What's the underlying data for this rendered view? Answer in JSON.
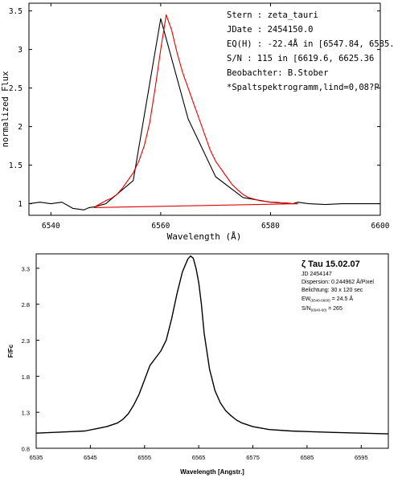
{
  "chart_data": [
    {
      "type": "line",
      "xlabel": "Wavelength (Å)",
      "ylabel": "normalized Flux",
      "xlim": [
        6536,
        6600
      ],
      "ylim": [
        0.85,
        3.6
      ],
      "x_ticks": [
        6540,
        6560,
        6580,
        6600
      ],
      "y_ticks": [
        1,
        1.5,
        2,
        2.5,
        3,
        3.5
      ],
      "x_tick_labels": [
        "6540",
        "6560",
        "6580",
        "6600"
      ],
      "y_tick_labels": [
        "1",
        "1.5",
        "2",
        "2.5",
        "3",
        "3.5"
      ],
      "annotations": [
        "Stern    : zeta_tauri",
        "JDate    : 2454150.0",
        "EQ(H) : -22.4Å in [6547.84, 6585.",
        "S/N      : 115 in [6619.6, 6625.36",
        "Beobachter: B.Stober",
        "*Spaltspektrogramm,lind=0,08?P"
      ],
      "series": [
        {
          "color": "#000000",
          "x": [
            6536,
            6538,
            6540,
            6542,
            6543,
            6544,
            6545,
            6546,
            6547,
            6548,
            6550,
            6555,
            6560,
            6565,
            6570,
            6575,
            6580,
            6584,
            6585,
            6587,
            6590,
            6593,
            6596,
            6598,
            6600
          ],
          "y": [
            1.0,
            1.02,
            1.0,
            1.02,
            0.98,
            0.94,
            0.93,
            0.92,
            0.95,
            0.96,
            1.0,
            1.3,
            3.4,
            2.1,
            1.35,
            1.08,
            1.02,
            1.0,
            1.02,
            1.0,
            0.99,
            1.0,
            1.0,
            1.0,
            1.0
          ]
        },
        {
          "color": "#e00000",
          "x": [
            6548,
            6549,
            6550,
            6551,
            6552,
            6553,
            6554,
            6555,
            6556,
            6557,
            6558,
            6559,
            6560,
            6561,
            6562,
            6563,
            6564,
            6565,
            6566,
            6567,
            6568,
            6569,
            6570,
            6571,
            6572,
            6573,
            6574,
            6575,
            6576,
            6577,
            6578,
            6579,
            6580,
            6581,
            6582,
            6583,
            6584,
            6585
          ],
          "y": [
            0.96,
            1.0,
            1.04,
            1.07,
            1.12,
            1.2,
            1.3,
            1.4,
            1.55,
            1.75,
            2.05,
            2.5,
            3.0,
            3.45,
            3.25,
            2.95,
            2.7,
            2.5,
            2.3,
            2.1,
            1.9,
            1.7,
            1.55,
            1.45,
            1.35,
            1.25,
            1.18,
            1.12,
            1.08,
            1.06,
            1.04,
            1.03,
            1.02,
            1.02,
            1.01,
            1.01,
            1.0,
            1.0
          ]
        },
        {
          "color": "#e00000",
          "x": [
            6547.84,
            6585
          ],
          "y": [
            0.95,
            1.0
          ]
        }
      ]
    },
    {
      "type": "line",
      "xlabel": "Wavelength [Angstr.]",
      "ylabel": "F/Fc",
      "xlim": [
        6535,
        6600
      ],
      "ylim": [
        0.8,
        3.5
      ],
      "x_ticks": [
        6535,
        6545,
        6555,
        6565,
        6575,
        6585,
        6595
      ],
      "y_ticks": [
        0.8,
        1.3,
        1.8,
        2.3,
        2.8,
        3.3
      ],
      "x_tick_labels": [
        "6535",
        "6545",
        "6555",
        "6565",
        "6575",
        "6585",
        "6595"
      ],
      "y_tick_labels": [
        "0.8",
        "1.3",
        "1.8",
        "2.3",
        "2.8",
        "3.3"
      ],
      "title": "ζ Tau 15.02.07",
      "info_lines": [
        "JD 2454147",
        "Dispersion: 0.244962 Å/Pixel",
        "Belichtung: 30 x 120 sec"
      ],
      "ew_line": {
        "label": "EW",
        "range": "(6540-6600)",
        "value": " = 24.5 Å"
      },
      "sn_line": {
        "label": "S/N",
        "range": "(6540-60)",
        "value": " = 265"
      },
      "series": [
        {
          "color": "#000000",
          "x": [
            6535,
            6538,
            6541,
            6544,
            6546,
            6548,
            6550,
            6551,
            6552,
            6553,
            6554,
            6555,
            6556,
            6557,
            6558,
            6559,
            6560,
            6561,
            6562,
            6563,
            6563.5,
            6564,
            6564.5,
            6565,
            6565.5,
            6566,
            6567,
            6568,
            6569,
            6570,
            6571,
            6572,
            6573,
            6575,
            6578,
            6582,
            6586,
            6590,
            6595,
            6600
          ],
          "y": [
            1.01,
            1.02,
            1.03,
            1.04,
            1.07,
            1.1,
            1.15,
            1.2,
            1.28,
            1.4,
            1.55,
            1.75,
            1.95,
            2.05,
            2.15,
            2.3,
            2.6,
            2.95,
            3.25,
            3.43,
            3.47,
            3.44,
            3.3,
            3.1,
            2.8,
            2.4,
            1.9,
            1.6,
            1.43,
            1.32,
            1.25,
            1.19,
            1.15,
            1.1,
            1.06,
            1.04,
            1.03,
            1.02,
            1.01,
            1.0
          ]
        }
      ]
    }
  ]
}
